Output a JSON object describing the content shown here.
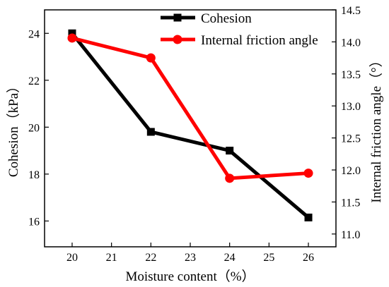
{
  "chart_data": {
    "type": "line",
    "x": [
      20,
      22,
      24,
      26
    ],
    "xlabel": "Moisture content（%）",
    "xlim": [
      19.3,
      26.7
    ],
    "xticks": [
      20,
      21,
      22,
      23,
      24,
      25,
      26
    ],
    "ylabel_left": "Cohesion（kPa）",
    "ylim_left": [
      14.9,
      25.0
    ],
    "yticks_left": [
      16,
      18,
      20,
      22,
      24
    ],
    "ylabel_right": "Internal friction angle（°）",
    "ylim_right": [
      10.8,
      14.5
    ],
    "yticks_right": [
      "11.0",
      "11.5",
      "12.0",
      "12.5",
      "13.0",
      "13.5",
      "14.0",
      "14.5"
    ],
    "grid": false,
    "legend_position": "top-right",
    "series": [
      {
        "name": "Cohesion",
        "axis": "left",
        "values": [
          24.0,
          19.8,
          19.0,
          16.15
        ],
        "color": "#000000",
        "marker": "square"
      },
      {
        "name": "Internal friction angle",
        "axis": "right",
        "values": [
          14.06,
          13.75,
          11.87,
          11.95
        ],
        "color": "#ff0000",
        "marker": "circle"
      }
    ]
  }
}
